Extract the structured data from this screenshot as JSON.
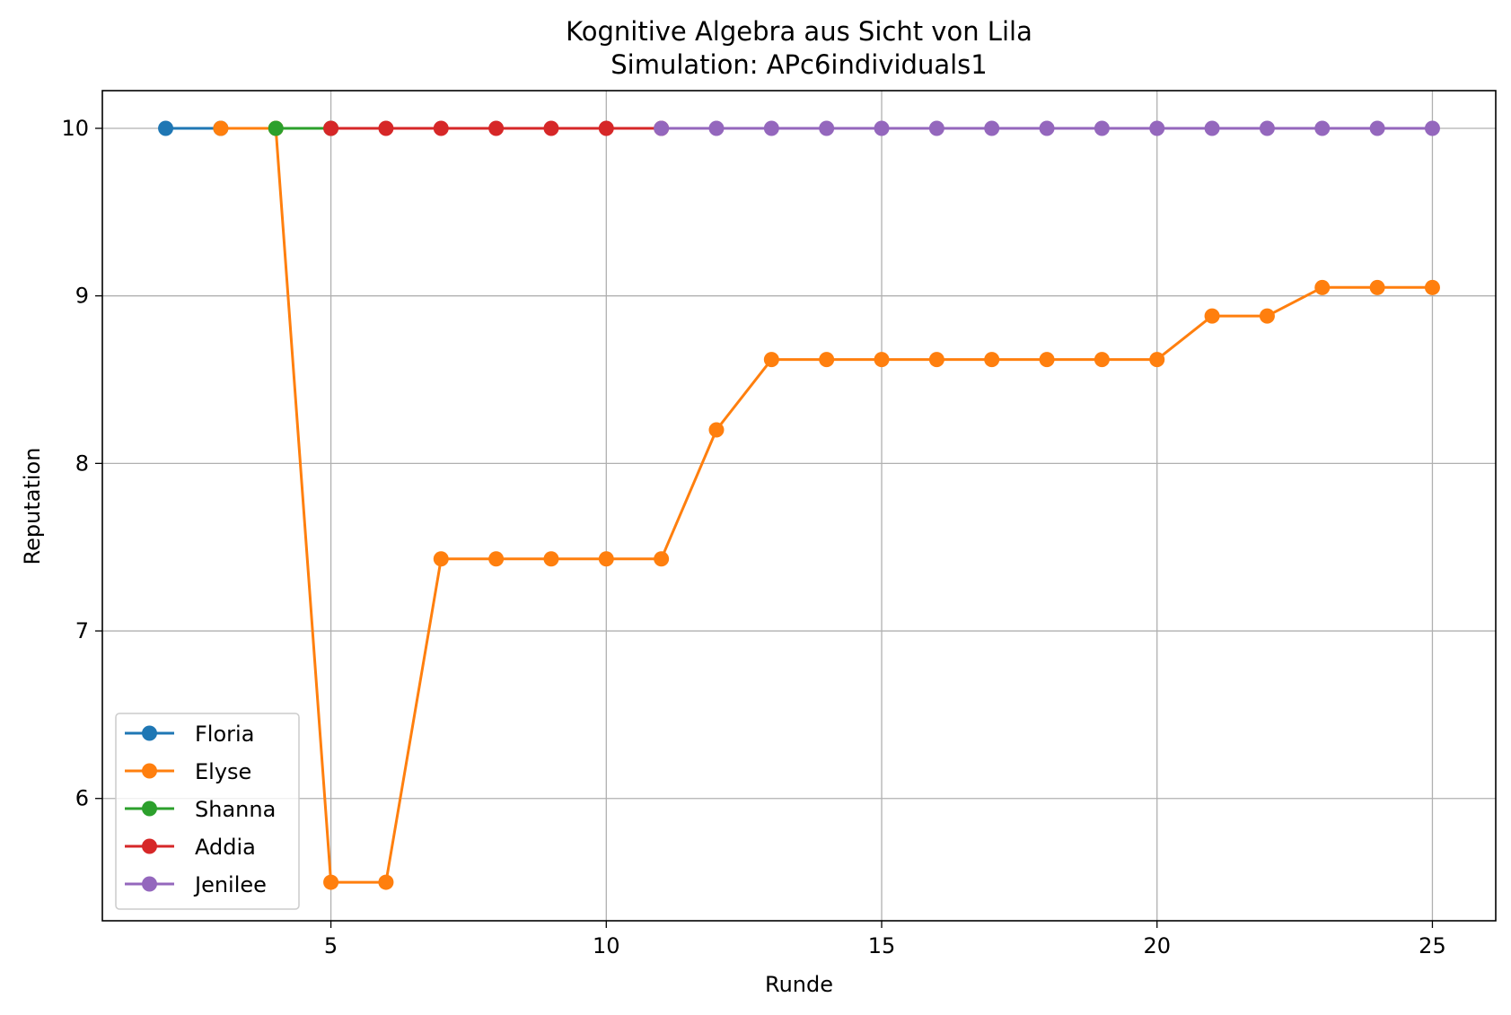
{
  "chart_data": {
    "type": "line",
    "title": "Kognitive Algebra aus Sicht von Lila",
    "subtitle": "Simulation: APc6individuals1",
    "xlabel": "Runde",
    "ylabel": "Reputation",
    "xlim": [
      0.85,
      26.15
    ],
    "ylim": [
      5.27,
      10.225
    ],
    "xticks": [
      5,
      10,
      15,
      20,
      25
    ],
    "yticks": [
      6,
      7,
      8,
      9,
      10
    ],
    "grid": true,
    "legend_position": "lower-left",
    "series": [
      {
        "name": "Floria",
        "color": "#1f77b4",
        "x": [
          2,
          3
        ],
        "y": [
          10,
          10
        ]
      },
      {
        "name": "Elyse",
        "color": "#ff7f0e",
        "x": [
          3,
          4,
          5,
          6,
          7,
          8,
          9,
          10,
          11,
          12,
          13,
          14,
          15,
          16,
          17,
          18,
          19,
          20,
          21,
          22,
          23,
          24,
          25
        ],
        "y": [
          10,
          10,
          5.5,
          5.5,
          7.43,
          7.43,
          7.43,
          7.43,
          7.43,
          8.2,
          8.62,
          8.62,
          8.62,
          8.62,
          8.62,
          8.62,
          8.62,
          8.62,
          8.88,
          8.88,
          9.05,
          9.05,
          9.05
        ]
      },
      {
        "name": "Shanna",
        "color": "#2ca02c",
        "x": [
          4,
          5
        ],
        "y": [
          10,
          10
        ]
      },
      {
        "name": "Addia",
        "color": "#d62728",
        "x": [
          5,
          6,
          7,
          8,
          9,
          10,
          11
        ],
        "y": [
          10,
          10,
          10,
          10,
          10,
          10,
          10
        ]
      },
      {
        "name": "Jenilee",
        "color": "#9467bd",
        "x": [
          11,
          12,
          13,
          14,
          15,
          16,
          17,
          18,
          19,
          20,
          21,
          22,
          23,
          24,
          25
        ],
        "y": [
          10,
          10,
          10,
          10,
          10,
          10,
          10,
          10,
          10,
          10,
          10,
          10,
          10,
          10,
          10
        ]
      }
    ]
  }
}
